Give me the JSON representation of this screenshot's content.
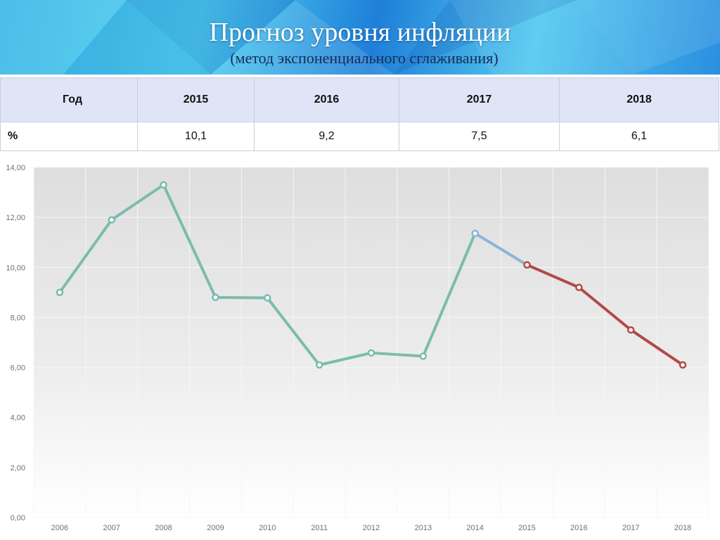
{
  "header": {
    "title": "Прогноз уровня инфляции",
    "subtitle": "(метод экспоненциального сглаживания)"
  },
  "forecast_table": {
    "header_label": "Год",
    "row_label": "%",
    "years": [
      "2015",
      "2016",
      "2017",
      "2018"
    ],
    "values": [
      "10,1",
      "9,2",
      "7,5",
      "6,1"
    ]
  },
  "colors": {
    "actual": "#7bbcad",
    "transition": "#8cb4dd",
    "forecast": "#b24a45"
  },
  "chart_data": {
    "type": "line",
    "categories": [
      "2006",
      "2007",
      "2008",
      "2009",
      "2010",
      "2011",
      "2012",
      "2013",
      "2014",
      "2015",
      "2016",
      "2017",
      "2018"
    ],
    "series": [
      {
        "values": [
          9.0,
          11.9,
          13.3,
          8.8,
          8.78,
          6.1,
          6.58,
          6.45,
          11.36,
          null,
          null,
          null,
          null
        ]
      },
      {
        "values": [
          null,
          null,
          null,
          null,
          null,
          null,
          null,
          null,
          null,
          10.1,
          9.2,
          7.5,
          6.1
        ]
      }
    ],
    "ylim": [
      0,
      14
    ],
    "yticks": [
      "0,00",
      "2,00",
      "4,00",
      "6,00",
      "8,00",
      "10,00",
      "12,00",
      "14,00"
    ],
    "grid": true
  }
}
